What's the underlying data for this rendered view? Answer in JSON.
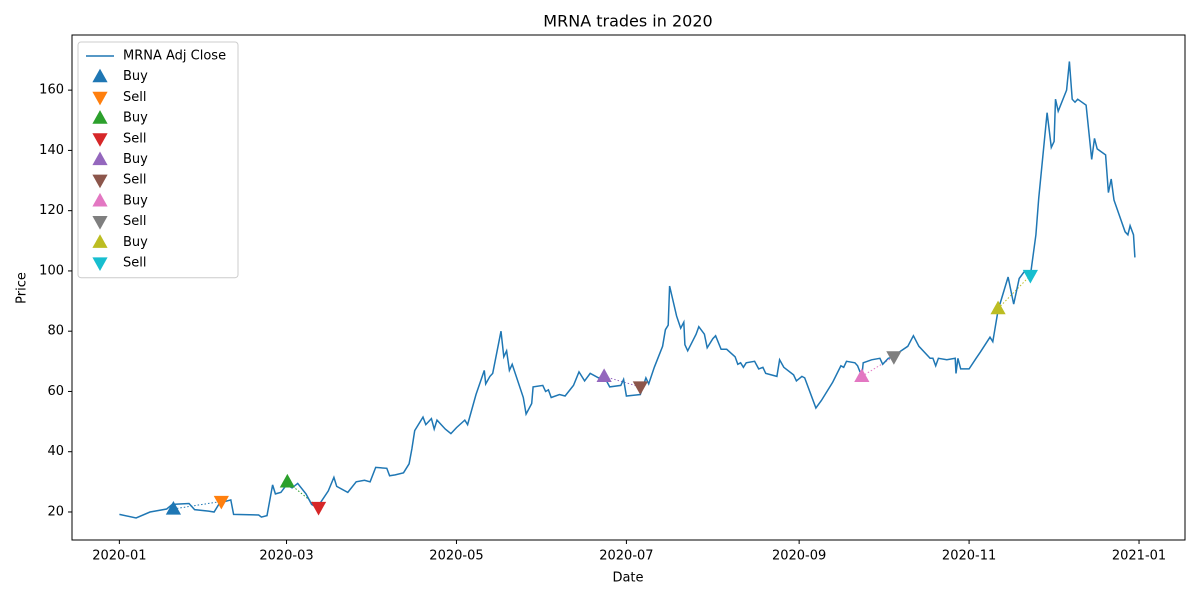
{
  "chart_data": {
    "type": "line",
    "title": "MRNA trades in 2020",
    "xlabel": "Date",
    "ylabel": "Price",
    "xlim": [
      -17,
      382.5
    ],
    "ylim": [
      10.7,
      178.3
    ],
    "xticks": [
      {
        "value": 0,
        "label": "2020-01"
      },
      {
        "value": 60,
        "label": "2020-03"
      },
      {
        "value": 121,
        "label": "2020-05"
      },
      {
        "value": 182,
        "label": "2020-07"
      },
      {
        "value": 244,
        "label": "2020-09"
      },
      {
        "value": 305,
        "label": "2020-11"
      },
      {
        "value": 366,
        "label": "2021-01"
      }
    ],
    "yticks": [
      20,
      40,
      60,
      80,
      100,
      120,
      140,
      160
    ],
    "legend": "upper left",
    "series": [
      {
        "name": "MRNA Adj Close",
        "color": "#1f77b4",
        "type": "line",
        "x": [
          0,
          6,
          11,
          14,
          17,
          19,
          25,
          27,
          32,
          34,
          36,
          40,
          41,
          50,
          51,
          53,
          55,
          56,
          58,
          60,
          62,
          64,
          67,
          69,
          71,
          75,
          77,
          78,
          82,
          85,
          88,
          90,
          92,
          96,
          97,
          99,
          102,
          104,
          105,
          106,
          109,
          110,
          112,
          113,
          114,
          117,
          119,
          121,
          124,
          125,
          128,
          131,
          131.5,
          133,
          134,
          137,
          138,
          139,
          140,
          141,
          145,
          146,
          148,
          148.5,
          152,
          153,
          154,
          155,
          158,
          160,
          163,
          165,
          167,
          169,
          172,
          174,
          176,
          180,
          181,
          182,
          187,
          189,
          190,
          192,
          195,
          196,
          197,
          197.5,
          200,
          201.5,
          202.6,
          203,
          204,
          207,
          208,
          210,
          211,
          213,
          214,
          216,
          218,
          221,
          222,
          223,
          224,
          225,
          228,
          229.5,
          231,
          232,
          236,
          237,
          238.5,
          242,
          243,
          245,
          246,
          250,
          252,
          256,
          259,
          260,
          261,
          264,
          265,
          266.5,
          267,
          270,
          273,
          274,
          276,
          278,
          279,
          283,
          285,
          287,
          291,
          292,
          293,
          294,
          297,
          300,
          300.3,
          301,
          302,
          305,
          307.5,
          309,
          312.5,
          313.5,
          315.4,
          319,
          321,
          323,
          325,
          327,
          329,
          330,
          333,
          334.5,
          335.5,
          336,
          337,
          340,
          341,
          342,
          343,
          344,
          347,
          349,
          350,
          351,
          354,
          355,
          356,
          357,
          361,
          362,
          362.8,
          364,
          364.5
        ],
        "values": [
          19.2,
          18,
          20,
          20.5,
          21,
          22.5,
          22.8,
          20.8,
          20.3,
          20,
          23,
          24,
          19.2,
          19,
          18.3,
          18.8,
          29,
          26,
          26.5,
          29,
          28,
          29.5,
          26,
          22.5,
          21.5,
          27,
          31.5,
          28.5,
          26.5,
          30,
          30.5,
          30,
          34.8,
          34.5,
          32,
          32.3,
          33,
          36,
          41,
          47,
          51.5,
          49,
          51,
          47.5,
          50.5,
          47.5,
          46,
          48,
          50.5,
          49,
          59,
          67,
          62.5,
          65,
          66,
          80,
          71.5,
          73.5,
          67,
          69,
          58,
          52.5,
          56,
          61.5,
          62,
          60,
          60.5,
          58,
          59,
          58.5,
          62,
          66.5,
          63.5,
          66,
          64.5,
          65,
          61.5,
          62,
          64,
          58.5,
          59,
          64.5,
          62.5,
          68,
          75,
          80.5,
          82,
          95,
          85,
          81,
          83,
          75.5,
          73.5,
          79,
          81.5,
          79,
          74.5,
          77.5,
          78.5,
          74,
          74,
          71.5,
          69,
          69.5,
          68,
          69.5,
          70,
          67.5,
          68,
          66,
          65,
          70.5,
          68,
          65.5,
          63.5,
          65,
          64.5,
          54.5,
          57,
          63,
          68.5,
          68,
          70,
          69.5,
          68.5,
          65,
          69.5,
          70.5,
          71,
          69,
          71,
          71.5,
          72.5,
          75,
          78.5,
          75,
          71,
          71,
          68.5,
          71,
          70.5,
          71,
          66,
          71,
          67.5,
          67.5,
          71,
          73,
          78,
          76.5,
          87,
          98,
          89,
          97.5,
          100,
          98.5,
          112,
          124,
          152.5,
          141,
          143,
          157,
          153,
          160,
          169.5,
          157,
          156,
          157,
          155,
          137,
          144,
          140.5,
          138.5,
          126,
          130.5,
          123.5,
          113,
          112,
          115,
          112,
          104.5
        ]
      },
      {
        "name": "Buy",
        "color": "#1f77b4",
        "type": "scatter",
        "marker": "triangle-up",
        "x": [
          19.4
        ],
        "values": [
          21
        ]
      },
      {
        "name": "Sell",
        "color": "#ff7f0e",
        "type": "scatter",
        "marker": "triangle-down",
        "x": [
          36.6
        ],
        "values": [
          23.5
        ]
      },
      {
        "name": "Buy",
        "color": "#2ca02c",
        "type": "scatter",
        "marker": "triangle-up",
        "x": [
          60.3
        ],
        "values": [
          30
        ]
      },
      {
        "name": "Sell",
        "color": "#d62728",
        "type": "scatter",
        "marker": "triangle-down",
        "x": [
          71.5
        ],
        "values": [
          21.5
        ]
      },
      {
        "name": "Buy",
        "color": "#9467bd",
        "type": "scatter",
        "marker": "triangle-up",
        "x": [
          174
        ],
        "values": [
          65
        ]
      },
      {
        "name": "Sell",
        "color": "#8c564b",
        "type": "scatter",
        "marker": "triangle-down",
        "x": [
          187
        ],
        "values": [
          61.5
        ]
      },
      {
        "name": "Buy",
        "color": "#e377c2",
        "type": "scatter",
        "marker": "triangle-up",
        "x": [
          266.5
        ],
        "values": [
          65
        ]
      },
      {
        "name": "Sell",
        "color": "#7f7f7f",
        "type": "scatter",
        "marker": "triangle-down",
        "x": [
          278
        ],
        "values": [
          71.5
        ]
      },
      {
        "name": "Buy",
        "color": "#bcbd22",
        "type": "scatter",
        "marker": "triangle-up",
        "x": [
          315.4
        ],
        "values": [
          87.5
        ]
      },
      {
        "name": "Sell",
        "color": "#17becf",
        "type": "scatter",
        "marker": "triangle-down",
        "x": [
          327
        ],
        "values": [
          98.5
        ]
      }
    ]
  }
}
